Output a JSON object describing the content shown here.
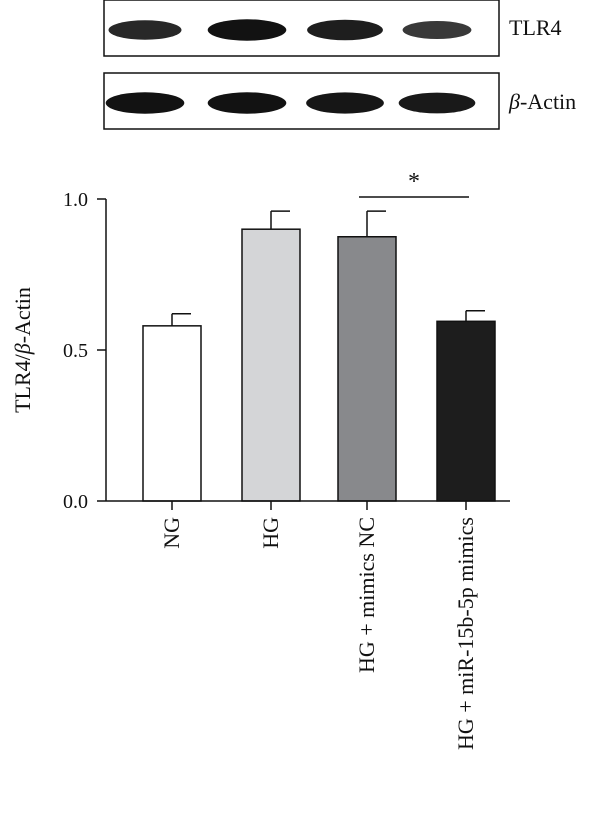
{
  "blots": [
    {
      "label": "TLR4",
      "label_italic": "",
      "label_rest": "TLR4",
      "bands": [
        0.75,
        0.95,
        0.85,
        0.6
      ]
    },
    {
      "label": "β-Actin",
      "label_italic": "β",
      "label_rest": "-Actin",
      "bands": [
        0.95,
        0.95,
        0.92,
        0.88
      ]
    }
  ],
  "chart_data": {
    "type": "bar",
    "categories": [
      "NG",
      "HG",
      "HG + mimics NC",
      "HG + miR-15b-5p mimics"
    ],
    "values": [
      0.58,
      0.9,
      0.875,
      0.595
    ],
    "errors": [
      0.04,
      0.06,
      0.085,
      0.035
    ],
    "bar_colors": [
      "#ffffff",
      "#d4d5d7",
      "#88898c",
      "#1d1d1d"
    ],
    "ylabel": "TLR4/β-Actin",
    "ylabel_pre": "TLR4/",
    "ylabel_italic": "β",
    "ylabel_post": "-Actin",
    "ylim": [
      0,
      1.0
    ],
    "yticks": [
      "0.0",
      "0.5",
      "1.0"
    ],
    "significance": [
      {
        "from": 2,
        "to": 3,
        "label": "*"
      }
    ]
  }
}
